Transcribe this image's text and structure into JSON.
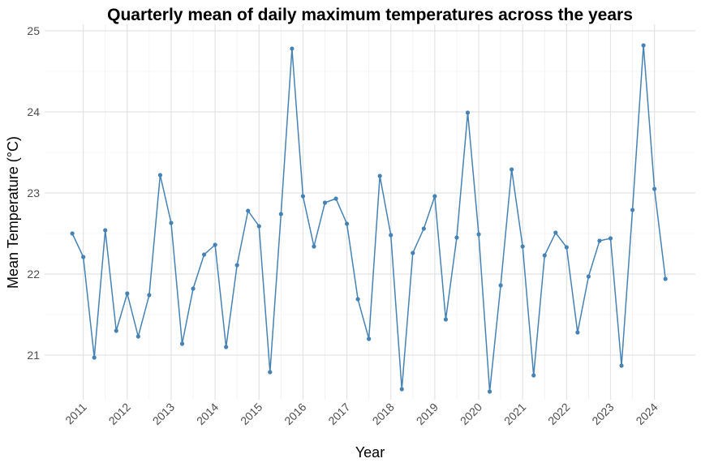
{
  "chart_data": {
    "type": "line",
    "title": "Quarterly mean of daily maximum temperatures across the years",
    "x_label": "Year",
    "y_label": "Mean Temperature (°C)",
    "x": [
      2010.75,
      2011,
      2011.25,
      2011.5,
      2011.75,
      2012,
      2012.25,
      2012.5,
      2012.75,
      2013,
      2013.25,
      2013.5,
      2013.75,
      2014,
      2014.25,
      2014.5,
      2014.75,
      2015,
      2015.25,
      2015.5,
      2015.75,
      2016,
      2016.25,
      2016.5,
      2016.75,
      2017,
      2017.25,
      2017.5,
      2017.75,
      2018,
      2018.25,
      2018.5,
      2018.75,
      2019,
      2019.25,
      2019.5,
      2019.75,
      2020,
      2020.25,
      2020.5,
      2020.75,
      2021,
      2021.25,
      2021.5,
      2021.75,
      2022,
      2022.25,
      2022.5,
      2022.75,
      2023,
      2023.25,
      2023.5,
      2023.75,
      2024,
      2024.25
    ],
    "series": [
      {
        "name": "Mean Temperature",
        "color": "#4682b4",
        "values": [
          22.5,
          22.21,
          20.97,
          22.54,
          21.3,
          21.76,
          21.23,
          21.74,
          23.22,
          22.63,
          21.14,
          21.82,
          22.24,
          22.36,
          21.1,
          22.11,
          22.78,
          22.59,
          20.79,
          22.74,
          24.78,
          22.96,
          22.34,
          22.88,
          22.93,
          22.62,
          21.69,
          21.2,
          23.21,
          22.48,
          20.58,
          22.26,
          22.56,
          22.96,
          21.44,
          22.45,
          23.99,
          22.49,
          20.55,
          21.86,
          23.29,
          22.34,
          20.75,
          22.23,
          22.51,
          22.33,
          21.28,
          21.97,
          22.41,
          22.44,
          20.87,
          22.79,
          24.82,
          23.05,
          21.94
        ]
      }
    ],
    "xlim": [
      2010.12,
      2024.93
    ],
    "ylim": [
      20.45,
      25.08
    ],
    "xticks": [
      2011,
      2012,
      2013,
      2014,
      2015,
      2016,
      2017,
      2018,
      2019,
      2020,
      2021,
      2022,
      2023,
      2024
    ],
    "yticks": [
      21,
      22,
      23,
      24,
      25
    ],
    "grid": true
  }
}
